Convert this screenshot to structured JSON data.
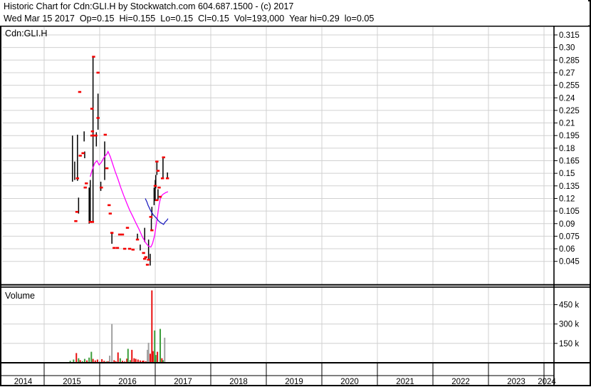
{
  "header": {
    "line1": "Historic Chart for Cdn:GLI.H by Stockwatch.com 604.687.1500 - (c) 2017",
    "line2": "Wed Mar 15 2017  Op=0.15  Hi=0.155  Lo=0.15  Cl=0.15  Vol=193,000  Year hi=0.29  lo=0.05"
  },
  "price_panel": {
    "label": "Cdn:GLI.H"
  },
  "volume_panel": {
    "label": "Volume"
  },
  "chart_data": {
    "type": "ohlc",
    "symbol": "Cdn:GLI.H",
    "colors": {
      "bar": "#000000",
      "close_mark": "#f40000",
      "ma_line": "#ff00ff",
      "short_line": "#2020c0",
      "volume_up": "#3c9e3c",
      "volume_down": "#e81010",
      "volume_neutral": "#a0a0a0",
      "grid": "#d0d0d0"
    },
    "price_axis": {
      "side": "right",
      "ticks": [
        "0.315",
        "0.30",
        "0.285",
        "0.27",
        "0.255",
        "0.24",
        "0.225",
        "0.21",
        "0.195",
        "0.18",
        "0.165",
        "0.15",
        "0.135",
        "0.12",
        "0.105",
        "0.09",
        "0.075",
        "0.06",
        "0.045"
      ],
      "ylim": [
        0.04,
        0.322
      ]
    },
    "volume_axis": {
      "side": "right",
      "ticks": [
        {
          "label": "450 k",
          "value": 450
        },
        {
          "label": "300 k",
          "value": 300
        },
        {
          "label": "150 k",
          "value": 150
        }
      ],
      "ylim_thousands": [
        0,
        600
      ]
    },
    "x_axis": {
      "years": [
        "2014",
        "2015",
        "2016",
        "2017",
        "2018",
        "2019",
        "2020",
        "2021",
        "2022",
        "2023",
        "2024"
      ],
      "xlim": [
        2014.25,
        2024.2
      ]
    },
    "price_bars": [
      [
        2015.51,
        0.195,
        0.14
      ],
      [
        2015.55,
        0.164,
        0.142
      ],
      [
        2015.6,
        0.196,
        0.141
      ],
      [
        2015.62,
        0.121,
        0.102
      ],
      [
        2015.72,
        0.2,
        0.188
      ],
      [
        2015.73,
        0.176,
        0.168
      ],
      [
        2015.81,
        0.133,
        0.09
      ],
      [
        2015.83,
        0.142,
        0.093
      ],
      [
        2015.88,
        0.289,
        0.092
      ],
      [
        2015.94,
        0.199,
        0.182
      ],
      [
        2015.97,
        0.245,
        0.202
      ],
      [
        2016.02,
        0.14,
        0.129
      ],
      [
        2016.09,
        0.188,
        0.142
      ],
      [
        2016.22,
        0.08,
        0.066
      ],
      [
        2016.68,
        0.078,
        0.071
      ],
      [
        2016.73,
        0.065,
        0.058
      ],
      [
        2016.81,
        0.085,
        0.068
      ],
      [
        2016.88,
        0.071,
        0.046
      ],
      [
        2016.91,
        0.054,
        0.04
      ],
      [
        2016.93,
        0.096,
        0.082
      ],
      [
        2016.94,
        0.11,
        0.096
      ],
      [
        2016.98,
        0.133,
        0.112
      ],
      [
        2017.0,
        0.142,
        0.117
      ],
      [
        2017.01,
        0.148,
        0.132
      ],
      [
        2017.03,
        0.163,
        0.148
      ],
      [
        2017.05,
        0.131,
        0.118
      ],
      [
        2017.14,
        0.168,
        0.143
      ],
      [
        2017.22,
        0.151,
        0.144
      ]
    ],
    "close_marks": [
      [
        2015.57,
        0.093
      ],
      [
        2015.59,
        0.104
      ],
      [
        2015.6,
        0.144
      ],
      [
        2015.64,
        0.247
      ],
      [
        2015.65,
        0.171
      ],
      [
        2015.7,
        0.174
      ],
      [
        2015.74,
        0.133
      ],
      [
        2015.76,
        0.138
      ],
      [
        2015.83,
        0.092
      ],
      [
        2015.86,
        0.227
      ],
      [
        2015.86,
        0.195
      ],
      [
        2015.87,
        0.2
      ],
      [
        2015.87,
        0.092
      ],
      [
        2015.89,
        0.289
      ],
      [
        2015.9,
        0.195
      ],
      [
        2015.93,
        0.195
      ],
      [
        2015.97,
        0.27
      ],
      [
        2015.97,
        0.216
      ],
      [
        2016.03,
        0.133
      ],
      [
        2016.1,
        0.196
      ],
      [
        2016.13,
        0.156
      ],
      [
        2016.17,
        0.112
      ],
      [
        2016.19,
        0.102
      ],
      [
        2016.22,
        0.079
      ],
      [
        2016.26,
        0.061
      ],
      [
        2016.32,
        0.061
      ],
      [
        2016.36,
        0.077
      ],
      [
        2016.41,
        0.077
      ],
      [
        2016.45,
        0.06
      ],
      [
        2016.5,
        0.085
      ],
      [
        2016.54,
        0.06
      ],
      [
        2016.6,
        0.059
      ],
      [
        2016.68,
        0.071
      ],
      [
        2016.79,
        0.055
      ],
      [
        2016.81,
        0.048
      ],
      [
        2016.83,
        0.05
      ],
      [
        2016.86,
        0.041
      ],
      [
        2016.88,
        0.047
      ],
      [
        2016.92,
        0.098
      ],
      [
        2016.94,
        0.082
      ],
      [
        2017.0,
        0.135
      ],
      [
        2017.03,
        0.118
      ],
      [
        2017.03,
        0.164
      ],
      [
        2017.05,
        0.153
      ],
      [
        2017.07,
        0.133
      ],
      [
        2017.09,
        0.122
      ],
      [
        2017.13,
        0.144
      ],
      [
        2017.15,
        0.169
      ],
      [
        2017.22,
        0.144
      ]
    ],
    "ma_line": {
      "points": [
        [
          2015.83,
          0.146
        ],
        [
          2015.87,
          0.155
        ],
        [
          2015.91,
          0.162
        ],
        [
          2015.95,
          0.165
        ],
        [
          2015.99,
          0.16
        ],
        [
          2016.03,
          0.163
        ],
        [
          2016.08,
          0.169
        ],
        [
          2016.13,
          0.173
        ],
        [
          2016.15,
          0.176
        ],
        [
          2016.19,
          0.17
        ],
        [
          2016.23,
          0.162
        ],
        [
          2016.28,
          0.152
        ],
        [
          2016.33,
          0.143
        ],
        [
          2016.38,
          0.133
        ],
        [
          2016.43,
          0.124
        ],
        [
          2016.49,
          0.114
        ],
        [
          2016.54,
          0.106
        ],
        [
          2016.6,
          0.098
        ],
        [
          2016.65,
          0.091
        ],
        [
          2016.71,
          0.083
        ],
        [
          2016.77,
          0.074
        ],
        [
          2016.83,
          0.067
        ],
        [
          2016.88,
          0.063
        ],
        [
          2016.92,
          0.062
        ],
        [
          2016.95,
          0.066
        ],
        [
          2016.99,
          0.076
        ],
        [
          2017.03,
          0.094
        ],
        [
          2017.07,
          0.113
        ],
        [
          2017.1,
          0.122
        ],
        [
          2017.14,
          0.125
        ],
        [
          2017.19,
          0.127
        ],
        [
          2017.23,
          0.128
        ]
      ]
    },
    "short_line": {
      "points": [
        [
          2016.82,
          0.12
        ],
        [
          2016.85,
          0.116
        ],
        [
          2016.87,
          0.112
        ],
        [
          2016.9,
          0.108
        ],
        [
          2016.92,
          0.105
        ],
        [
          2016.95,
          0.102
        ],
        [
          2016.97,
          0.1
        ],
        [
          2017.0,
          0.098
        ],
        [
          2017.03,
          0.096
        ],
        [
          2017.05,
          0.094
        ],
        [
          2017.08,
          0.092
        ],
        [
          2017.1,
          0.091
        ],
        [
          2017.13,
          0.09
        ],
        [
          2017.15,
          0.089
        ],
        [
          2017.18,
          0.092
        ],
        [
          2017.21,
          0.094
        ],
        [
          2017.23,
          0.096
        ]
      ]
    },
    "volume_bars_thousands": [
      [
        2015.47,
        15,
        "green"
      ],
      [
        2015.53,
        25,
        "green"
      ],
      [
        2015.58,
        75,
        "red"
      ],
      [
        2015.62,
        35,
        "green"
      ],
      [
        2015.65,
        20,
        "red"
      ],
      [
        2015.69,
        12,
        "green"
      ],
      [
        2015.73,
        30,
        "green"
      ],
      [
        2015.77,
        18,
        "red"
      ],
      [
        2015.81,
        40,
        "green"
      ],
      [
        2015.85,
        85,
        "green"
      ],
      [
        2015.88,
        30,
        "red"
      ],
      [
        2015.92,
        18,
        "red"
      ],
      [
        2015.96,
        25,
        "red"
      ],
      [
        2016.0,
        10,
        "gray"
      ],
      [
        2016.04,
        28,
        "red"
      ],
      [
        2016.08,
        15,
        "red"
      ],
      [
        2016.12,
        10,
        "green"
      ],
      [
        2016.15,
        12,
        "red"
      ],
      [
        2016.18,
        55,
        "gray"
      ],
      [
        2016.22,
        300,
        "gray"
      ],
      [
        2016.26,
        20,
        "red"
      ],
      [
        2016.29,
        12,
        "red"
      ],
      [
        2016.33,
        80,
        "red"
      ],
      [
        2016.37,
        35,
        "green"
      ],
      [
        2016.41,
        15,
        "red"
      ],
      [
        2016.45,
        10,
        "red"
      ],
      [
        2016.49,
        32,
        "red"
      ],
      [
        2016.51,
        108,
        "green"
      ],
      [
        2016.55,
        20,
        "green"
      ],
      [
        2016.58,
        100,
        "red"
      ],
      [
        2016.62,
        35,
        "red"
      ],
      [
        2016.65,
        30,
        "red"
      ],
      [
        2016.69,
        25,
        "red"
      ],
      [
        2016.73,
        18,
        "red"
      ],
      [
        2016.77,
        15,
        "red"
      ],
      [
        2016.79,
        17,
        "red"
      ],
      [
        2016.83,
        12,
        "red"
      ],
      [
        2016.86,
        100,
        "gray"
      ],
      [
        2016.88,
        155,
        "gray"
      ],
      [
        2016.91,
        70,
        "red"
      ],
      [
        2016.94,
        560,
        "red"
      ],
      [
        2016.96,
        90,
        "red"
      ],
      [
        2016.99,
        250,
        "green"
      ],
      [
        2017.01,
        60,
        "green"
      ],
      [
        2017.04,
        85,
        "red"
      ],
      [
        2017.09,
        262,
        "green"
      ],
      [
        2017.12,
        35,
        "red"
      ],
      [
        2017.14,
        20,
        "green"
      ],
      [
        2017.17,
        194,
        "gray"
      ]
    ]
  }
}
